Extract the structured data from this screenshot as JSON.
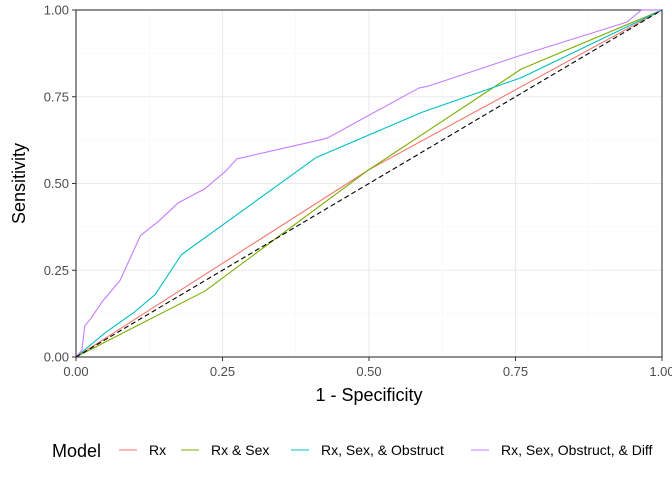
{
  "chart_data": {
    "type": "line",
    "xlabel": "1 - Specificity",
    "ylabel": "Sensitivity",
    "xlim": [
      0,
      1
    ],
    "ylim": [
      0,
      1
    ],
    "x_ticks": [
      "0.00",
      "0.25",
      "0.50",
      "0.75",
      "1.00"
    ],
    "y_ticks": [
      "0.00",
      "0.25",
      "0.50",
      "0.75",
      "1.00"
    ],
    "grid": true,
    "legend": {
      "title": "Model",
      "position": "bottom"
    },
    "reference_line": {
      "style": "dashed",
      "color": "#000000",
      "points": [
        [
          0,
          0
        ],
        [
          1,
          1
        ]
      ]
    },
    "series": [
      {
        "name": "Rx",
        "color": "#F8766D",
        "points": [
          [
            0,
            0
          ],
          [
            0.5,
            0.54
          ],
          [
            1,
            1
          ]
        ]
      },
      {
        "name": "Rx & Sex",
        "color": "#7CAE00",
        "points": [
          [
            0,
            0
          ],
          [
            0.22,
            0.19
          ],
          [
            0.5,
            0.54
          ],
          [
            0.76,
            0.83
          ],
          [
            1,
            1
          ]
        ]
      },
      {
        "name": "Rx, Sex, & Obstruct",
        "color": "#00BFC4",
        "points": [
          [
            0,
            0
          ],
          [
            0.05,
            0.07
          ],
          [
            0.1,
            0.13
          ],
          [
            0.135,
            0.18
          ],
          [
            0.18,
            0.295
          ],
          [
            0.41,
            0.575
          ],
          [
            0.59,
            0.705
          ],
          [
            0.76,
            0.805
          ],
          [
            1,
            1
          ]
        ]
      },
      {
        "name": "Rx, Sex, Obstruct, & Diff",
        "color": "#C77CFF",
        "points": [
          [
            0,
            0
          ],
          [
            0.01,
            0.02
          ],
          [
            0.015,
            0.09
          ],
          [
            0.025,
            0.11
          ],
          [
            0.045,
            0.16
          ],
          [
            0.075,
            0.22
          ],
          [
            0.11,
            0.35
          ],
          [
            0.14,
            0.39
          ],
          [
            0.175,
            0.445
          ],
          [
            0.22,
            0.485
          ],
          [
            0.255,
            0.535
          ],
          [
            0.275,
            0.572
          ],
          [
            0.28,
            0.573
          ],
          [
            0.42,
            0.627
          ],
          [
            0.43,
            0.632
          ],
          [
            0.585,
            0.775
          ],
          [
            0.6,
            0.78
          ],
          [
            0.76,
            0.87
          ],
          [
            0.94,
            0.965
          ],
          [
            0.965,
            1.0
          ],
          [
            1,
            1
          ]
        ]
      }
    ]
  }
}
